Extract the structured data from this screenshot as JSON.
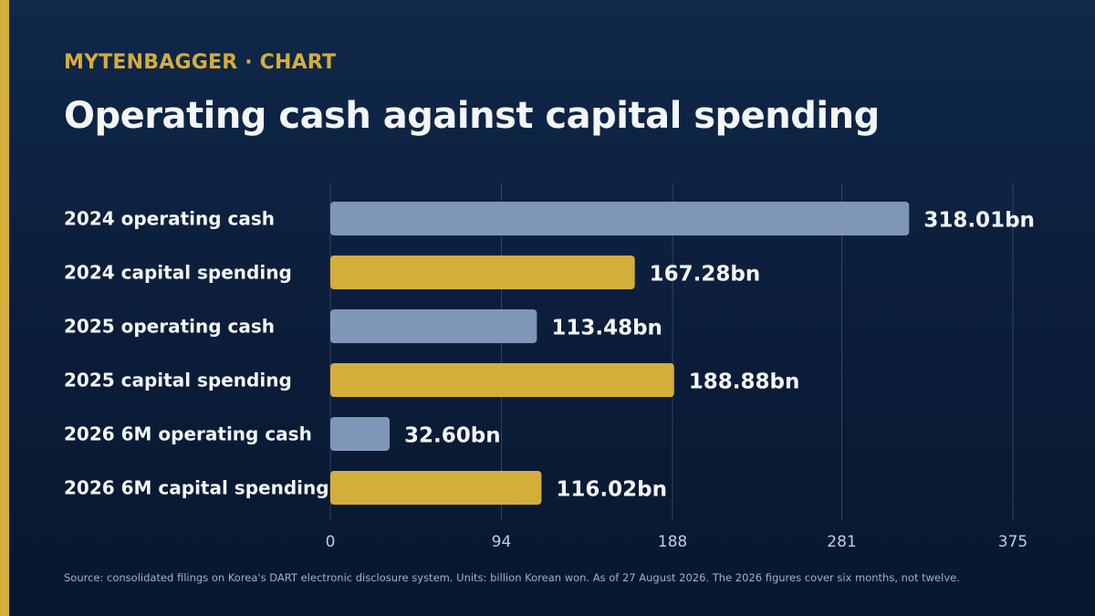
{
  "header": {
    "eyebrow": "MYTENBAGGER · CHART",
    "title": "Operating cash against capital spending"
  },
  "source": "Source: consolidated filings on Korea's DART electronic disclosure system. Units: billion Korean won. As of 27 August 2026. The 2026 figures cover six months, not twelve.",
  "colors": {
    "accent": "#d4ae3a",
    "operating": "#7f96b8",
    "capital": "#d4ae3a",
    "text": "#f3f5f9",
    "tick": "#c2cddd",
    "grid": "#2f4564"
  },
  "chart_data": {
    "type": "bar",
    "orientation": "horizontal",
    "categories": [
      "2024 operating cash",
      "2024 capital spending",
      "2025 operating cash",
      "2025 capital spending",
      "2026 6M operating cash",
      "2026 6M capital spending"
    ],
    "values": [
      318.01,
      167.28,
      113.48,
      188.88,
      32.6,
      116.02
    ],
    "value_labels": [
      "318.01bn",
      "167.28bn",
      "113.48bn",
      "188.88bn",
      "32.60bn",
      "116.02bn"
    ],
    "bar_colors": [
      "#7f96b8",
      "#d4ae3a",
      "#7f96b8",
      "#d4ae3a",
      "#7f96b8",
      "#d4ae3a"
    ],
    "xlim": [
      0,
      375
    ],
    "xticks": [
      0,
      94,
      188,
      281,
      375
    ],
    "xtick_labels": [
      "0",
      "94",
      "188",
      "281",
      "375"
    ],
    "grid": true
  }
}
